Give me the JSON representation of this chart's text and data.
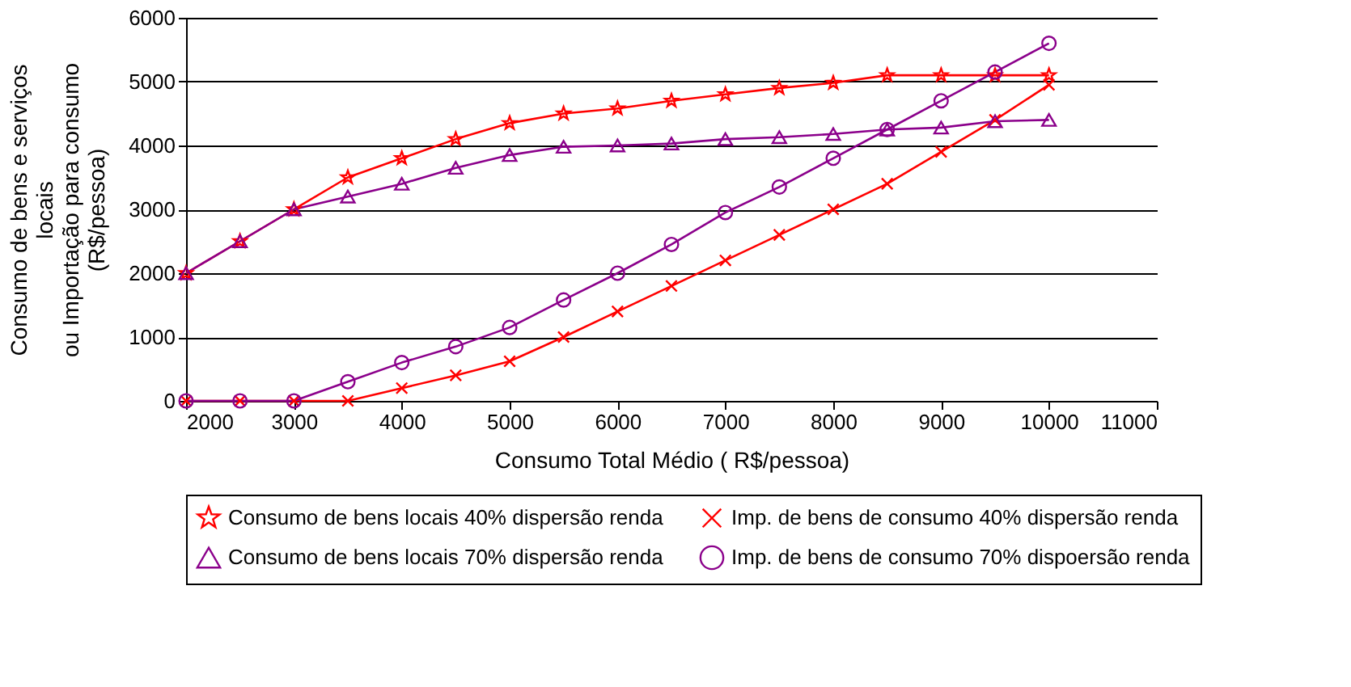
{
  "chart_data": {
    "type": "line",
    "xlabel": "Consumo Total Médio ( R$/pessoa)",
    "ylabel": "Consumo de bens e serviços\nlocais\nou Importação para consumo\n(R$/pessoa)",
    "x": [
      2000,
      2500,
      3000,
      3500,
      4000,
      4500,
      5000,
      5500,
      6000,
      6500,
      7000,
      7500,
      8000,
      8500,
      9000,
      9500,
      10000
    ],
    "series": [
      {
        "name": "Consumo de bens locais 40% dispersão renda",
        "color": "#ff0000",
        "marker": "star",
        "values": [
          2000,
          2500,
          3000,
          3500,
          3800,
          4100,
          4350,
          4500,
          4580,
          4700,
          4800,
          4900,
          4980,
          5100,
          5100,
          5100,
          5100
        ]
      },
      {
        "name": "Imp. de bens de consumo 40% dispersão renda",
        "color": "#ff0000",
        "marker": "cross",
        "values": [
          0,
          0,
          0,
          0,
          200,
          400,
          620,
          1000,
          1400,
          1800,
          2200,
          2600,
          3000,
          3400,
          3900,
          4400,
          4950
        ]
      },
      {
        "name": "Consumo de bens locais 70% dispersão renda",
        "color": "#8b008b",
        "marker": "triangle",
        "values": [
          2000,
          2500,
          3000,
          3200,
          3400,
          3650,
          3850,
          3980,
          4000,
          4030,
          4100,
          4130,
          4180,
          4250,
          4280,
          4380,
          4400
        ]
      },
      {
        "name": "Imp. de bens de consumo 70% dispoersão renda",
        "color": "#8b008b",
        "marker": "circle",
        "values": [
          0,
          0,
          0,
          300,
          600,
          850,
          1150,
          1580,
          2000,
          2450,
          2950,
          3350,
          3800,
          4250,
          4700,
          5150,
          5600
        ]
      }
    ],
    "xlim": [
      2000,
      11000
    ],
    "xticks": [
      2000,
      3000,
      4000,
      5000,
      6000,
      7000,
      8000,
      9000,
      10000,
      11000
    ],
    "ylim": [
      0,
      6000
    ],
    "yticks": [
      0,
      1000,
      2000,
      3000,
      4000,
      5000,
      6000
    ],
    "grid": "y",
    "legend": "bottom",
    "line_style": "solid"
  }
}
